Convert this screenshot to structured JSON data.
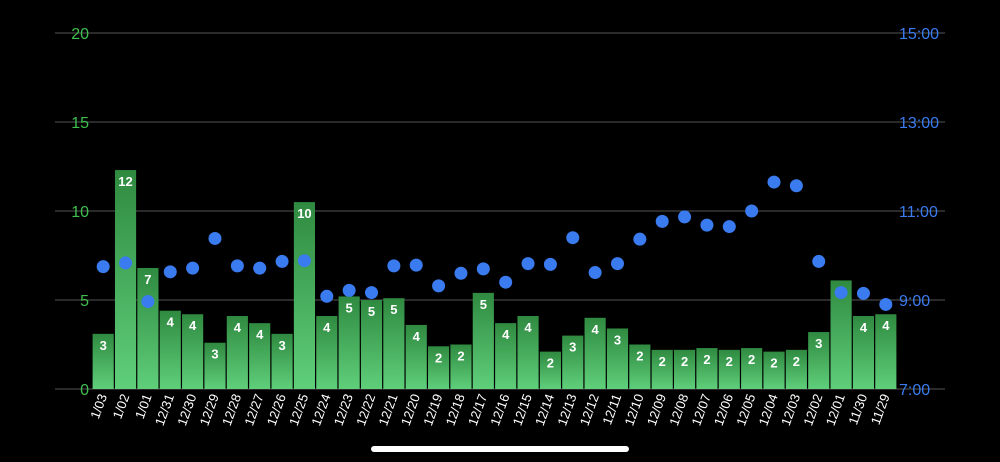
{
  "chart_data": {
    "type": "bar",
    "categories": [
      "1/03",
      "1/02",
      "1/01",
      "12/31",
      "12/30",
      "12/29",
      "12/28",
      "12/27",
      "12/26",
      "12/25",
      "12/24",
      "12/23",
      "12/22",
      "12/21",
      "12/20",
      "12/19",
      "12/18",
      "12/17",
      "12/16",
      "12/15",
      "12/14",
      "12/13",
      "12/12",
      "12/11",
      "12/10",
      "12/09",
      "12/08",
      "12/07",
      "12/06",
      "12/05",
      "12/04",
      "12/03",
      "12/02",
      "12/01",
      "11/30",
      "11/29"
    ],
    "series": [
      {
        "type": "bar",
        "axis": "left",
        "values": [
          3,
          12,
          7,
          4,
          4,
          3,
          4,
          4,
          3,
          10,
          4,
          5,
          5,
          5,
          4,
          2,
          2,
          5,
          4,
          4,
          2,
          3,
          4,
          3,
          2,
          2,
          2,
          2,
          2,
          2,
          2,
          2,
          3,
          6,
          4,
          4
        ],
        "heights": [
          3.1,
          12.3,
          6.8,
          4.4,
          4.2,
          2.6,
          4.1,
          3.7,
          3.1,
          10.5,
          4.1,
          5.2,
          5.0,
          5.1,
          3.6,
          2.4,
          2.5,
          5.4,
          3.7,
          4.1,
          2.1,
          3.0,
          4.0,
          3.4,
          2.5,
          2.2,
          2.2,
          2.3,
          2.2,
          2.3,
          2.1,
          2.2,
          3.2,
          6.1,
          4.1,
          4.2
        ],
        "color": "#3fae55"
      },
      {
        "type": "scatter",
        "axis": "right",
        "values": [
          "9:45",
          "9:50",
          "8:58",
          "9:38",
          "9:43",
          "10:23",
          "9:46",
          "9:43",
          "9:52",
          "9:53",
          "9:05",
          "9:13",
          "9:10",
          "9:46",
          "9:47",
          "9:19",
          "9:36",
          "9:42",
          "9:24",
          "9:49",
          "9:48",
          "10:24",
          "9:37",
          "9:49",
          "10:22",
          "10:46",
          "10:52",
          "10:41",
          "10:39",
          "11:00",
          "11:39",
          "11:34",
          "9:52",
          "9:10",
          "9:09",
          "8:54"
        ],
        "color": "#3a7bf0"
      }
    ],
    "y_left": {
      "ticks": [
        "0",
        "5",
        "10",
        "15",
        "20"
      ],
      "range": [
        0,
        20
      ],
      "color": "#3fbf4f"
    },
    "y_right": {
      "ticks": [
        "7:00",
        "9:00",
        "11:00",
        "13:00",
        "15:00"
      ],
      "range": [
        "7:00",
        "15:00"
      ],
      "color": "#3a7bf0"
    },
    "grid": true,
    "title": "",
    "xlabel": "",
    "ylabel": ""
  }
}
